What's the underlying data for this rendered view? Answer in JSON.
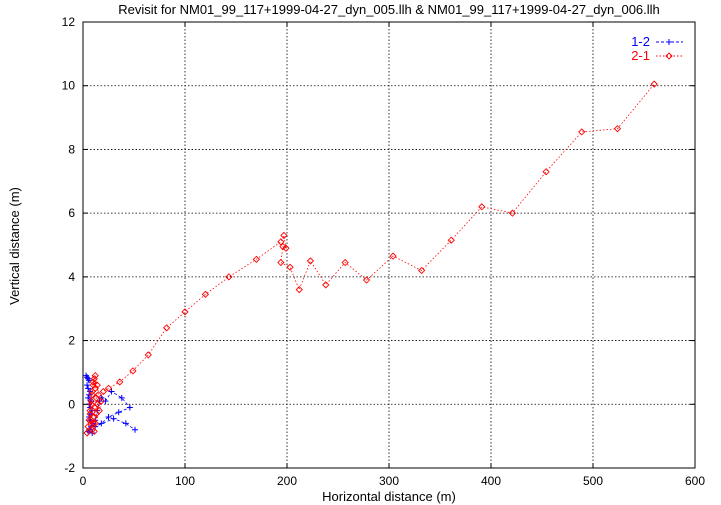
{
  "chart_data": {
    "type": "scatter",
    "title": "Revisit for NM01_99_117+1999-04-27_dyn_005.llh & NM01_99_117+1999-04-27_dyn_006.llh",
    "xlabel": "Horizontal distance (m)",
    "ylabel": "Vertical distance (m)",
    "xlim": [
      0,
      600
    ],
    "ylim": [
      -2,
      12
    ],
    "xticks": [
      0,
      100,
      200,
      300,
      400,
      500,
      600
    ],
    "yticks": [
      -2,
      0,
      2,
      4,
      6,
      8,
      10,
      12
    ],
    "grid": true,
    "legend_position": "top-right",
    "series": [
      {
        "name": "1-2",
        "color": "#0000ff",
        "marker": "plus",
        "line": "dashed",
        "points": [
          [
            3,
            0.9
          ],
          [
            4,
            0.85
          ],
          [
            5,
            0.8
          ],
          [
            6,
            0.75
          ],
          [
            4,
            0.6
          ],
          [
            5,
            0.5
          ],
          [
            7,
            0.4
          ],
          [
            6,
            0.3
          ],
          [
            5,
            0.2
          ],
          [
            8,
            0.1
          ],
          [
            6,
            0.0
          ],
          [
            7,
            -0.1
          ],
          [
            9,
            -0.2
          ],
          [
            8,
            -0.3
          ],
          [
            6,
            -0.4
          ],
          [
            7,
            -0.5
          ],
          [
            10,
            -0.6
          ],
          [
            8,
            -0.7
          ],
          [
            6,
            -0.8
          ],
          [
            5,
            -0.85
          ],
          [
            9,
            -0.9
          ],
          [
            12,
            -0.5
          ],
          [
            14,
            -0.2
          ],
          [
            16,
            0.1
          ],
          [
            18,
            0.2
          ],
          [
            22,
            0.1
          ],
          [
            28,
            0.4
          ],
          [
            38,
            0.2
          ],
          [
            46,
            -0.1
          ],
          [
            35,
            -0.25
          ],
          [
            25,
            -0.4
          ],
          [
            18,
            -0.6
          ],
          [
            12,
            -0.7
          ],
          [
            30,
            -0.45
          ],
          [
            42,
            -0.6
          ],
          [
            51,
            -0.8
          ]
        ]
      },
      {
        "name": "2-1",
        "color": "#ff0000",
        "marker": "diamond",
        "line": "dotted",
        "points": [
          [
            4,
            -0.9
          ],
          [
            5,
            -0.7
          ],
          [
            6,
            -0.5
          ],
          [
            7,
            -0.3
          ],
          [
            8,
            0.0
          ],
          [
            9,
            0.3
          ],
          [
            10,
            0.6
          ],
          [
            11,
            0.8
          ],
          [
            12,
            0.5
          ],
          [
            13,
            0.2
          ],
          [
            12,
            -0.1
          ],
          [
            11,
            -0.4
          ],
          [
            10,
            -0.6
          ],
          [
            9,
            -0.8
          ],
          [
            8,
            -0.5
          ],
          [
            7,
            -0.2
          ],
          [
            8,
            0.1
          ],
          [
            9,
            0.4
          ],
          [
            10,
            0.7
          ],
          [
            12,
            0.9
          ],
          [
            14,
            0.6
          ],
          [
            15,
            0.3
          ],
          [
            14,
            0.0
          ],
          [
            13,
            -0.3
          ],
          [
            12,
            -0.6
          ],
          [
            11,
            -0.85
          ],
          [
            16,
            -0.2
          ],
          [
            18,
            0.1
          ],
          [
            20,
            0.4
          ],
          [
            25,
            0.5
          ],
          [
            36,
            0.7
          ],
          [
            49,
            1.05
          ],
          [
            64,
            1.55
          ],
          [
            82,
            2.4
          ],
          [
            100,
            2.9
          ],
          [
            120,
            3.45
          ],
          [
            143,
            4.0
          ],
          [
            170,
            4.55
          ],
          [
            194,
            5.1
          ],
          [
            197,
            5.3
          ],
          [
            199,
            4.9
          ],
          [
            196,
            4.95
          ],
          [
            194,
            4.45
          ],
          [
            203,
            4.3
          ],
          [
            212,
            3.6
          ],
          [
            223,
            4.5
          ],
          [
            238,
            3.75
          ],
          [
            257,
            4.45
          ],
          [
            278,
            3.9
          ],
          [
            304,
            4.65
          ],
          [
            332,
            4.2
          ],
          [
            361,
            5.15
          ],
          [
            391,
            6.2
          ],
          [
            421,
            6.0
          ],
          [
            454,
            7.3
          ],
          [
            489,
            8.55
          ],
          [
            524,
            8.65
          ],
          [
            560,
            10.05
          ]
        ]
      }
    ]
  }
}
